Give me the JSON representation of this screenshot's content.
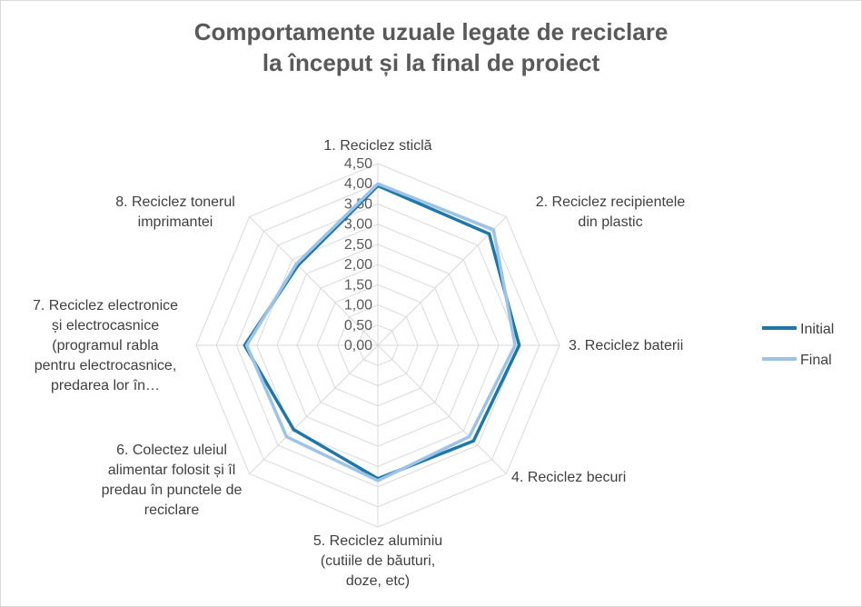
{
  "chart_data": {
    "type": "radar",
    "title_lines": [
      "Comportamente uzuale legate de reciclare",
      "la început și la final de proiect"
    ],
    "categories": [
      [
        "1. Reciclez sticlă"
      ],
      [
        "2. Reciclez recipientele",
        "din plastic"
      ],
      [
        "3. Reciclez baterii"
      ],
      [
        "4. Reciclez becuri"
      ],
      [
        "5. Reciclez aluminiu",
        "(cutiile de băuturi,",
        "doze, etc)"
      ],
      [
        "6. Colectez uleiul",
        "alimentar folosit și îl",
        "predau în punctele de",
        "reciclare"
      ],
      [
        "7. Reciclez electronice",
        "și electrocasnice",
        "(programul rabla",
        "pentru electrocasnice,",
        "predarea lor în…"
      ],
      [
        "8. Reciclez tonerul",
        "imprimantei"
      ]
    ],
    "r_ticks": [
      "0,00",
      "0,50",
      "1,00",
      "1,50",
      "2,00",
      "2,50",
      "3,00",
      "3,50",
      "4,00",
      "4,50"
    ],
    "r_range": [
      0,
      4.5
    ],
    "grid": true,
    "legend_position": "right",
    "series": [
      {
        "name": "Initial",
        "color": "#1F77A8",
        "values": [
          3.95,
          3.9,
          3.5,
          3.35,
          3.3,
          2.95,
          3.3,
          2.8
        ]
      },
      {
        "name": "Final",
        "color": "#9DC3E6",
        "values": [
          4.0,
          4.05,
          3.4,
          3.2,
          3.35,
          3.2,
          3.25,
          2.85
        ]
      }
    ]
  }
}
